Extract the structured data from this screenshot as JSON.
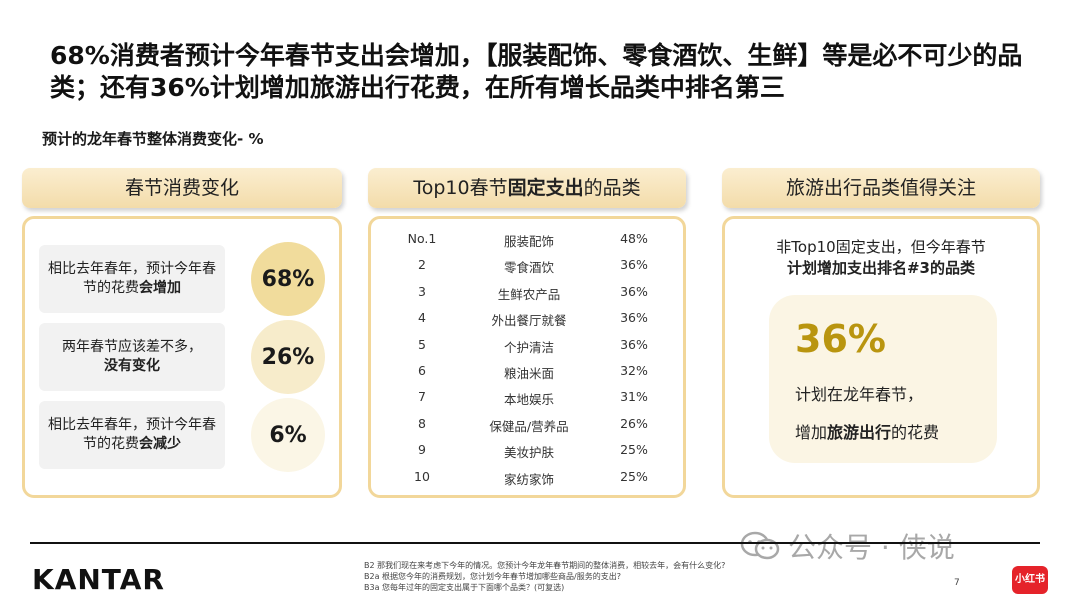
{
  "title": "68%消费者预计今年春节支出会增加，【服装配饰、零食酒饮、生鲜】等是必不可少的品类；还有36%计划增加旅游出行花费，在所有增长品类中排名第三",
  "subtitle": "预计的龙年春节整体消费变化- %",
  "left": {
    "header": "春节消费变化",
    "rows": [
      {
        "text_a": "相比去年春年，预计今年春节的花费",
        "text_b": "会增加",
        "value": "68%",
        "circle_color": "#f1dc9c"
      },
      {
        "text_a": "两年春节应该差不多，",
        "text_b": "没有变化",
        "value": "26%",
        "circle_color": "#f7eccb"
      },
      {
        "text_a": "相比去年春年，预计今年春节的花费",
        "text_b": "会减少",
        "value": "6%",
        "circle_color": "#fbf6e6"
      }
    ]
  },
  "middle": {
    "header_a": "Top10春节",
    "header_b": "固定支出",
    "header_c": "的品类",
    "rows": [
      {
        "rank": "No.1",
        "category": "服装配饰",
        "pct": "48%"
      },
      {
        "rank": "2",
        "category": "零食酒饮",
        "pct": "36%"
      },
      {
        "rank": "3",
        "category": "生鲜农产品",
        "pct": "36%"
      },
      {
        "rank": "4",
        "category": "外出餐厅就餐",
        "pct": "36%"
      },
      {
        "rank": "5",
        "category": "个护清洁",
        "pct": "36%"
      },
      {
        "rank": "6",
        "category": "粮油米面",
        "pct": "32%"
      },
      {
        "rank": "7",
        "category": "本地娱乐",
        "pct": "31%"
      },
      {
        "rank": "8",
        "category": "保健品/营养品",
        "pct": "26%"
      },
      {
        "rank": "9",
        "category": "美妆护肤",
        "pct": "25%"
      },
      {
        "rank": "10",
        "category": "家纺家饰",
        "pct": "25%"
      }
    ]
  },
  "right": {
    "header": "旅游出行品类值得关注",
    "line1": "非Top10固定支出，但今年春节",
    "line2": "计划增加支出排名#3的品类",
    "big_value": "36%",
    "desc1": "计划在龙年春节，",
    "desc2_a": "增加",
    "desc2_b": "旅游出行",
    "desc2_c": "的花费"
  },
  "footer": {
    "logo": "KANTAR",
    "notes": [
      "B2 那我们现在来考虑下今年的情况。您预计今年龙年春节期间的整体消费，相较去年，会有什么变化?",
      "B2a 根据您今年的消费规划，您计划今年春节增加哪些商品/服务的支出?",
      "B3a 您每年过年的固定支出属于下面哪个品类？(可复选)"
    ],
    "page_number": "7",
    "watermark": "公众号 · 侠说",
    "badge": "小红书"
  }
}
